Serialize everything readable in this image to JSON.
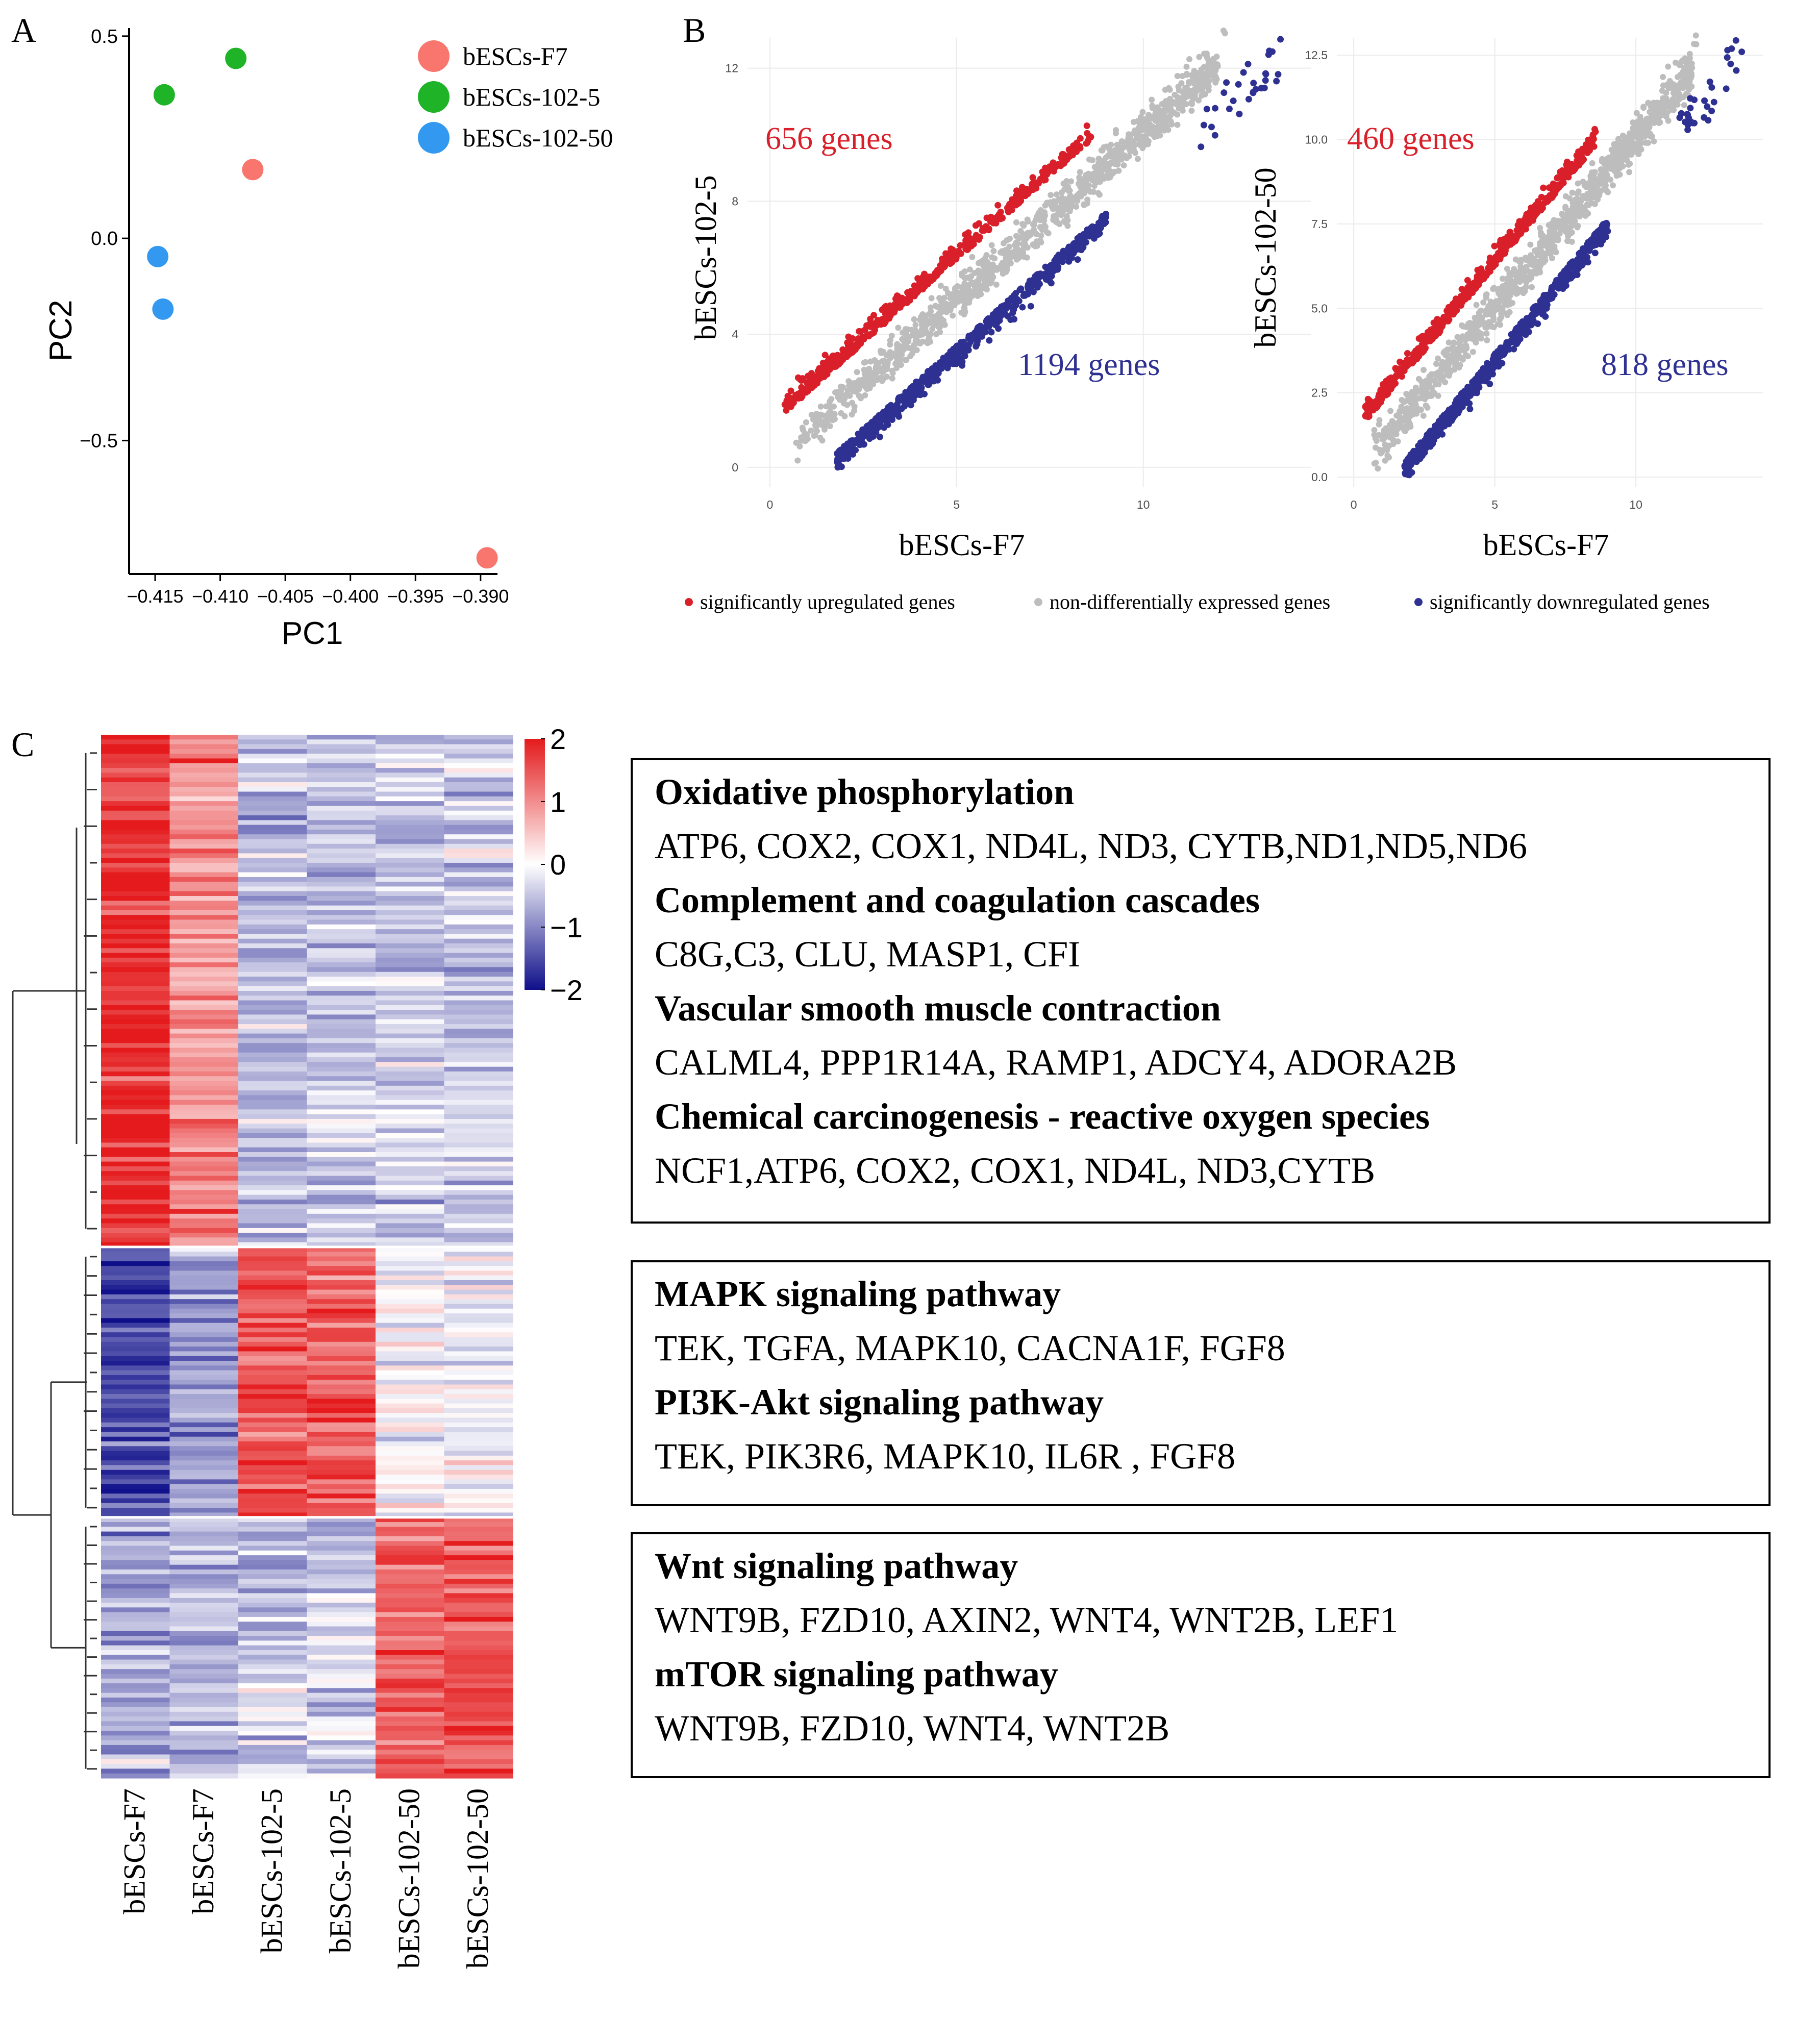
{
  "panels": {
    "a": "A",
    "b": "B",
    "c": "C"
  },
  "colors": {
    "f7": "#F8766D",
    "r5": "#1FB327",
    "r50": "#3399F0",
    "up": "#D9202A",
    "nd": "#BDBDBD",
    "down": "#2E3192",
    "heat_high": "#E41A1C",
    "heat_mid": "#FFFFFF",
    "heat_low": "#0F0F8A"
  },
  "chart_data": [
    {
      "id": "pca",
      "type": "scatter",
      "xlabel": "PC1",
      "ylabel": "PC2",
      "xlim": [
        -0.417,
        -0.3887
      ],
      "ylim": [
        -0.83,
        0.52
      ],
      "xticks": [
        -0.415,
        -0.41,
        -0.405,
        -0.4,
        -0.395,
        -0.39
      ],
      "xtick_labels": [
        "−0.415",
        "−0.410",
        "−0.405",
        "−0.400",
        "−0.395",
        "−0.390"
      ],
      "yticks": [
        0.5,
        0.0,
        -0.5
      ],
      "ytick_labels": [
        "0.5",
        "0.0",
        "−0.5"
      ],
      "legend_position": "top-right",
      "series": [
        {
          "name": "bESCs-F7",
          "color_key": "f7",
          "points": [
            [
              -0.4075,
              0.17
            ],
            [
              -0.3895,
              -0.79
            ]
          ]
        },
        {
          "name": "bESCs-102-5",
          "color_key": "r5",
          "points": [
            [
              -0.4143,
              0.355
            ],
            [
              -0.4088,
              0.445
            ]
          ]
        },
        {
          "name": "bESCs-102-50",
          "color_key": "r50",
          "points": [
            [
              -0.4148,
              -0.045
            ],
            [
              -0.4144,
              -0.175
            ]
          ]
        }
      ]
    },
    {
      "id": "scatter_1",
      "type": "scatter",
      "xlabel": "bESCs-F7",
      "ylabel": "bESCs-102-5",
      "xlim": [
        -0.6,
        14.5
      ],
      "ylim": [
        -0.6,
        12.9
      ],
      "xticks": [
        0,
        5,
        10
      ],
      "yticks": [
        0,
        4,
        8,
        12
      ],
      "grid": true,
      "up_count_label": "656 genes",
      "down_count_label": "1194 genes",
      "series": [
        {
          "name": "significantly upregulated genes",
          "color_key": "up"
        },
        {
          "name": "non-differentially expressed genes",
          "color_key": "nd"
        },
        {
          "name": "significantly downregulated genes",
          "color_key": "down"
        }
      ]
    },
    {
      "id": "scatter_2",
      "type": "scatter",
      "xlabel": "bESCs-F7",
      "ylabel": "bESCs-102-50",
      "xlim": [
        -0.6,
        14.5
      ],
      "ylim": [
        -0.3,
        13.0
      ],
      "xticks": [
        0,
        5,
        10
      ],
      "yticks": [
        0.0,
        2.5,
        5.0,
        7.5,
        10.0,
        12.5
      ],
      "ytick_labels": [
        "0.0",
        "2.5",
        "5.0",
        "7.5",
        "10.0",
        "12.5"
      ],
      "grid": true,
      "up_count_label": "460 genes",
      "down_count_label": "818 genes",
      "series": [
        {
          "name": "significantly upregulated genes",
          "color_key": "up"
        },
        {
          "name": "non-differentially expressed genes",
          "color_key": "nd"
        },
        {
          "name": "significantly downregulated genes",
          "color_key": "down"
        }
      ]
    },
    {
      "id": "heatmap",
      "type": "heatmap",
      "columns": [
        "bESCs-F7",
        "bESCs-F7",
        "bESCs-102-5",
        "bESCs-102-5",
        "bESCs-102-50",
        "bESCs-102-50"
      ],
      "colorbar_ticks": [
        2,
        1,
        0,
        -1,
        -2
      ],
      "colorbar_labels": [
        "2",
        "1",
        "0",
        "−1",
        "−2"
      ],
      "clusters": [
        {
          "fraction": 0.49,
          "means": [
            1.85,
            1.0,
            -0.55,
            -0.5,
            -0.4,
            -0.45
          ]
        },
        {
          "fraction": 0.26,
          "means": [
            -1.6,
            -0.8,
            1.5,
            1.4,
            0.05,
            -0.1
          ]
        },
        {
          "fraction": 0.25,
          "means": [
            -0.7,
            -0.6,
            -0.45,
            -0.35,
            1.4,
            1.5
          ]
        }
      ]
    }
  ],
  "scatter_legend": [
    {
      "label": "significantly upregulated genes",
      "color_key": "up"
    },
    {
      "label": "non-differentially expressed genes",
      "color_key": "nd"
    },
    {
      "label": "significantly downregulated genes",
      "color_key": "down"
    }
  ],
  "pathway_boxes": [
    {
      "entries": [
        {
          "title": "Oxidative phosphorylation",
          "genes": "ATP6, COX2, COX1, ND4L, ND3,  CYTB,ND1,ND5,ND6"
        },
        {
          "title": "Complement and coagulation cascades",
          "genes": "C8G,C3, CLU, MASP1, CFI"
        },
        {
          "title": "Vascular smooth muscle contraction",
          "genes": "CALML4, PPP1R14A, RAMP1, ADCY4, ADORA2B"
        },
        {
          "title": "Chemical carcinogenesis - reactive oxygen species",
          "genes": "NCF1,ATP6, COX2, COX1, ND4L, ND3,CYTB"
        }
      ]
    },
    {
      "entries": [
        {
          "title": "MAPK signaling pathway",
          "genes": "TEK, TGFA, MAPK10, CACNA1F, FGF8"
        },
        {
          "title": "PI3K-Akt signaling pathway",
          "genes": "TEK, PIK3R6, MAPK10, IL6R , FGF8"
        }
      ]
    },
    {
      "entries": [
        {
          "title": "Wnt signaling pathway",
          "genes": "WNT9B,  FZD10, AXIN2, WNT4, WNT2B, LEF1"
        },
        {
          "title": "mTOR signaling pathway",
          "genes": "WNT9B,  FZD10, WNT4, WNT2B"
        }
      ]
    }
  ]
}
